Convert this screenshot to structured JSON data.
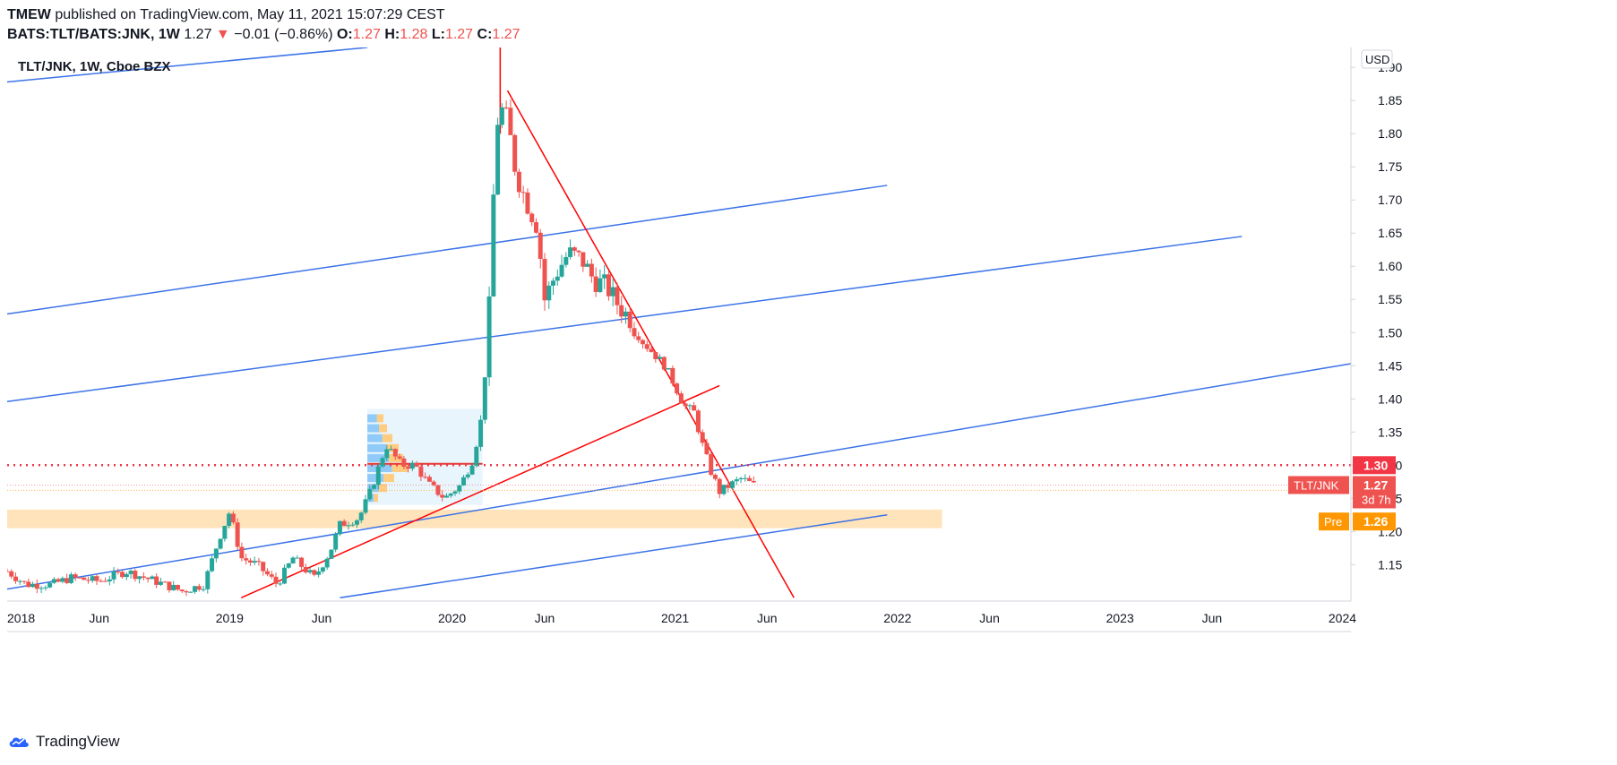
{
  "header": {
    "publisher": "TMEW",
    "published_text": "published on TradingView.com, May 11, 2021 15:07:29 CEST",
    "symbol": "BATS:TLT/BATS:JNK,",
    "interval": "1W",
    "last": "1.27",
    "change_arrow": "▼",
    "change": "−0.01 (−0.86%)",
    "o_label": "O:",
    "o_val": "1.27",
    "h_label": "H:",
    "h_val": "1.28",
    "l_label": "L:",
    "l_val": "1.27",
    "c_label": "C:",
    "c_val": "1.27"
  },
  "chart_title": "TLT/JNK, 1W, Cboe BZX",
  "footer": {
    "brand": "TradingView"
  },
  "colors": {
    "up": "#26a69a",
    "down": "#ef5350",
    "trend_blue": "#2962ff",
    "trend_red": "#ff0000",
    "zone": "#ffe0b2",
    "hline": "#f23645",
    "pre": "#ff9800",
    "volume_profile": "#e3f2fd"
  },
  "chart_data": {
    "type": "candlestick",
    "currency": "USD",
    "y_range": [
      1.1,
      1.93
    ],
    "y_ticks": [
      "1.90",
      "1.85",
      "1.80",
      "1.75",
      "1.70",
      "1.65",
      "1.60",
      "1.55",
      "1.50",
      "1.45",
      "1.40",
      "1.35",
      "1.30",
      "1.25",
      "1.20",
      "1.15"
    ],
    "x_labels": [
      {
        "label": "2018",
        "date": "2018-01-01"
      },
      {
        "label": "Jun",
        "date": "2018-06-01"
      },
      {
        "label": "2019",
        "date": "2019-01-01"
      },
      {
        "label": "Jun",
        "date": "2019-06-01"
      },
      {
        "label": "2020",
        "date": "2020-01-01"
      },
      {
        "label": "Jun",
        "date": "2020-06-01"
      },
      {
        "label": "2021",
        "date": "2021-01-01"
      },
      {
        "label": "Jun",
        "date": "2021-06-01"
      },
      {
        "label": "2022",
        "date": "2022-01-01"
      },
      {
        "label": "Jun",
        "date": "2022-06-01"
      },
      {
        "label": "2023",
        "date": "2023-01-01"
      },
      {
        "label": "Jun",
        "date": "2023-06-01"
      },
      {
        "label": "2024",
        "date": "2024-01-01"
      }
    ],
    "x_range": [
      "2018-01-01",
      "2024-01-15"
    ],
    "price_markers": [
      {
        "label": "",
        "value": "1.30",
        "price": 1.3,
        "color": "#f23645"
      },
      {
        "label": "TLT/JNK",
        "value": "1.27",
        "sub": "3d 7h",
        "price": 1.27,
        "color": "#ef5350"
      },
      {
        "label": "Pre",
        "value": "1.26",
        "price": 1.215,
        "color": "#ff9800"
      }
    ],
    "horizontal_line": {
      "price": 1.3,
      "style": "dotted"
    },
    "support_zone": {
      "from": "2018-01-01",
      "to": "2022-03-15",
      "low": 1.205,
      "high": 1.225
    },
    "trendlines": [
      {
        "color": "blue",
        "p1": [
          "2018-01-01",
          1.878
        ],
        "p2": [
          "2019-08-15",
          1.93
        ]
      },
      {
        "color": "blue",
        "p1": [
          "2018-01-01",
          1.528
        ],
        "p2": [
          "2021-12-15",
          1.722
        ]
      },
      {
        "color": "blue",
        "p1": [
          "2018-01-01",
          1.396
        ],
        "p2": [
          "2023-07-20",
          1.645
        ]
      },
      {
        "color": "blue",
        "p1": [
          "2018-01-01",
          1.113
        ],
        "p2": [
          "2024-01-15",
          1.453
        ]
      },
      {
        "color": "blue",
        "p1": [
          "2019-07-01",
          1.1
        ],
        "p2": [
          "2021-12-15",
          1.225
        ]
      },
      {
        "color": "red",
        "p1": [
          "2020-04-01",
          1.865
        ],
        "p2": [
          "2021-07-15",
          1.1
        ]
      },
      {
        "color": "red",
        "p1": [
          "2019-01-20",
          1.1
        ],
        "p2": [
          "2021-03-15",
          1.42
        ]
      },
      {
        "color": "red",
        "p1": [
          "2020-03-20",
          1.93
        ],
        "p2": [
          "2020-03-20",
          1.8
        ]
      }
    ],
    "candles_keypoints": [
      [
        "2018-01-01",
        1.14
      ],
      [
        "2018-02-01",
        1.12
      ],
      [
        "2018-03-15",
        1.12
      ],
      [
        "2018-04-15",
        1.13
      ],
      [
        "2018-06-01",
        1.125
      ],
      [
        "2018-07-15",
        1.14
      ],
      [
        "2018-09-01",
        1.125
      ],
      [
        "2018-10-15",
        1.11
      ],
      [
        "2018-11-20",
        1.12
      ],
      [
        "2018-12-15",
        1.19
      ],
      [
        "2019-01-01",
        1.23
      ],
      [
        "2019-01-20",
        1.16
      ],
      [
        "2019-02-15",
        1.15
      ],
      [
        "2019-03-20",
        1.12
      ],
      [
        "2019-04-15",
        1.16
      ],
      [
        "2019-05-20",
        1.13
      ],
      [
        "2019-06-15",
        1.17
      ],
      [
        "2019-07-01",
        1.21
      ],
      [
        "2019-08-01",
        1.22
      ],
      [
        "2019-08-20",
        1.26
      ],
      [
        "2019-09-15",
        1.33
      ],
      [
        "2019-10-10",
        1.3
      ],
      [
        "2019-11-01",
        1.3
      ],
      [
        "2019-11-25",
        1.27
      ],
      [
        "2019-12-20",
        1.25
      ],
      [
        "2020-01-15",
        1.27
      ],
      [
        "2020-02-05",
        1.31
      ],
      [
        "2020-02-20",
        1.38
      ],
      [
        "2020-03-05",
        1.58
      ],
      [
        "2020-03-12",
        1.8
      ],
      [
        "2020-03-20",
        1.84
      ],
      [
        "2020-04-01",
        1.82
      ],
      [
        "2020-04-15",
        1.74
      ],
      [
        "2020-05-01",
        1.7
      ],
      [
        "2020-05-20",
        1.66
      ],
      [
        "2020-06-01",
        1.55
      ],
      [
        "2020-06-20",
        1.59
      ],
      [
        "2020-07-10",
        1.62
      ],
      [
        "2020-08-01",
        1.61
      ],
      [
        "2020-08-20",
        1.58
      ],
      [
        "2020-09-10",
        1.57
      ],
      [
        "2020-10-01",
        1.54
      ],
      [
        "2020-10-20",
        1.52
      ],
      [
        "2020-11-05",
        1.49
      ],
      [
        "2020-11-25",
        1.47
      ],
      [
        "2020-12-15",
        1.45
      ],
      [
        "2021-01-01",
        1.42
      ],
      [
        "2021-01-15",
        1.39
      ],
      [
        "2021-02-01",
        1.38
      ],
      [
        "2021-02-15",
        1.33
      ],
      [
        "2021-03-01",
        1.29
      ],
      [
        "2021-03-15",
        1.26
      ],
      [
        "2021-04-01",
        1.27
      ],
      [
        "2021-04-20",
        1.28
      ],
      [
        "2021-05-10",
        1.27
      ]
    ]
  }
}
